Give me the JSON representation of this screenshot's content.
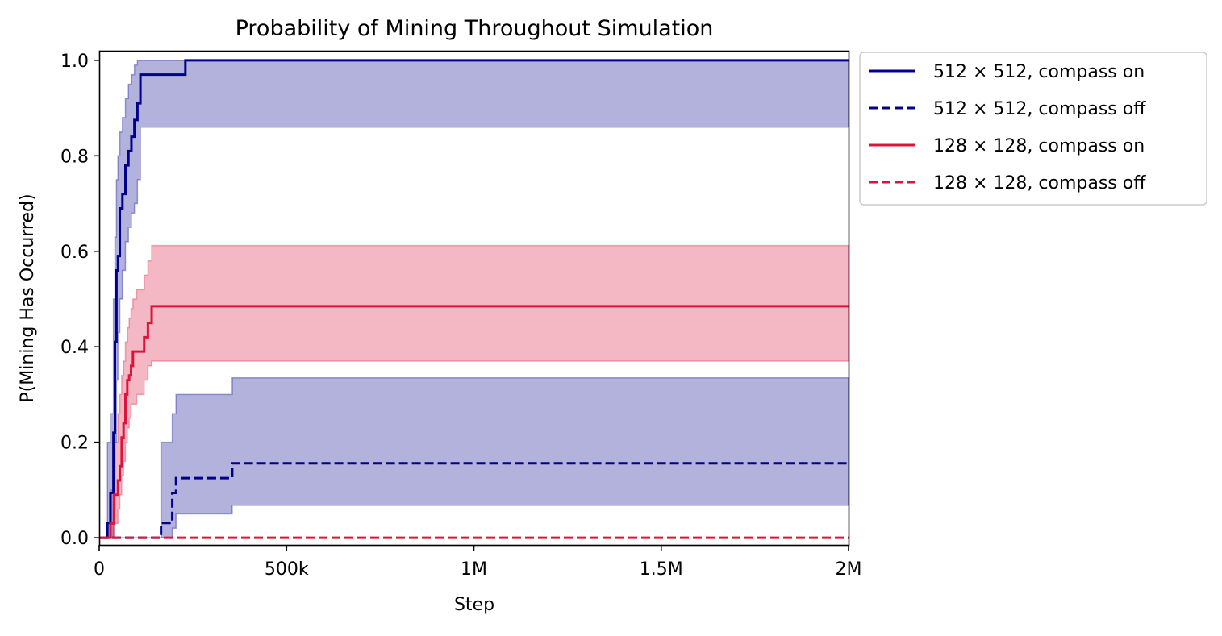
{
  "chart_data": {
    "type": "line",
    "title": "Probability of Mining Throughout Simulation",
    "xlabel": "Step",
    "ylabel": "P(Mining Has Occurred)",
    "xlim": [
      0,
      2000000
    ],
    "ylim": [
      -0.015,
      1.02
    ],
    "xticks": [
      {
        "value": 0,
        "label": "0"
      },
      {
        "value": 500000,
        "label": "500k"
      },
      {
        "value": 1000000,
        "label": "1M"
      },
      {
        "value": 1500000,
        "label": "1.5M"
      },
      {
        "value": 2000000,
        "label": "2M"
      }
    ],
    "yticks": [
      {
        "value": 0.0,
        "label": "0.0"
      },
      {
        "value": 0.2,
        "label": "0.2"
      },
      {
        "value": 0.4,
        "label": "0.4"
      },
      {
        "value": 0.6,
        "label": "0.6"
      },
      {
        "value": 0.8,
        "label": "0.8"
      },
      {
        "value": 1.0,
        "label": "1.0"
      }
    ],
    "legend_position": "outside-top-right",
    "series": [
      {
        "name": "512 × 512, compass on",
        "legend_main": "512 × 512",
        "legend_rest": ", compass on",
        "color": "#00008b",
        "dash": "solid",
        "x": [
          0,
          22000,
          30000,
          38000,
          42000,
          46000,
          50000,
          55000,
          62000,
          70000,
          78000,
          86000,
          94000,
          102000,
          110000,
          230000,
          2000000
        ],
        "y": [
          0,
          0.031,
          0.094,
          0.22,
          0.41,
          0.56,
          0.59,
          0.69,
          0.72,
          0.78,
          0.81,
          0.84,
          0.875,
          0.91,
          0.97,
          1.0,
          1.0
        ],
        "ci_lower": [
          0,
          0,
          0,
          0.06,
          0.2,
          0.33,
          0.43,
          0.5,
          0.56,
          0.62,
          0.65,
          0.68,
          0.7,
          0.75,
          0.86,
          0.86,
          0.86
        ],
        "ci_upper": [
          0,
          0.2,
          0.26,
          0.5,
          0.63,
          0.75,
          0.8,
          0.85,
          0.88,
          0.92,
          0.95,
          0.97,
          0.99,
          1.0,
          1.0,
          1.0,
          1.0
        ]
      },
      {
        "name": "512 × 512, compass off",
        "legend_main": "512 × 512",
        "legend_rest": ", compass off",
        "color": "#00008b",
        "dash": "dashed",
        "x": [
          0,
          165000,
          195000,
          205000,
          355000,
          2000000
        ],
        "y": [
          0,
          0.031,
          0.094,
          0.125,
          0.156,
          0.156
        ],
        "ci_lower": [
          0,
          0,
          0.02,
          0.05,
          0.068,
          0.068
        ],
        "ci_upper": [
          0,
          0.2,
          0.26,
          0.3,
          0.335,
          0.335
        ]
      },
      {
        "name": "128 × 128, compass on",
        "legend_main": "128 × 128",
        "legend_rest": ", compass on",
        "color": "#dc143c",
        "dash": "solid",
        "x": [
          0,
          30000,
          40000,
          50000,
          55000,
          60000,
          65000,
          70000,
          75000,
          80000,
          85000,
          90000,
          100000,
          120000,
          130000,
          140000,
          2000000
        ],
        "y": [
          0,
          0.03,
          0.09,
          0.12,
          0.15,
          0.21,
          0.24,
          0.3,
          0.33,
          0.34,
          0.36,
          0.39,
          0.39,
          0.42,
          0.45,
          0.485,
          0.485
        ],
        "ci_lower": [
          0,
          0,
          0.03,
          0.06,
          0.09,
          0.13,
          0.16,
          0.2,
          0.23,
          0.25,
          0.28,
          0.28,
          0.3,
          0.33,
          0.36,
          0.37,
          0.37
        ],
        "ci_upper": [
          0,
          0.1,
          0.2,
          0.26,
          0.3,
          0.34,
          0.37,
          0.41,
          0.44,
          0.46,
          0.48,
          0.5,
          0.52,
          0.55,
          0.58,
          0.612,
          0.612
        ]
      },
      {
        "name": "128 × 128, compass off",
        "legend_main": "128 × 128",
        "legend_rest": ", compass off",
        "color": "#dc143c",
        "dash": "dashed",
        "x": [
          0,
          2000000
        ],
        "y": [
          0,
          0
        ],
        "ci_lower": [
          0,
          0
        ],
        "ci_upper": [
          0,
          0
        ]
      }
    ]
  }
}
